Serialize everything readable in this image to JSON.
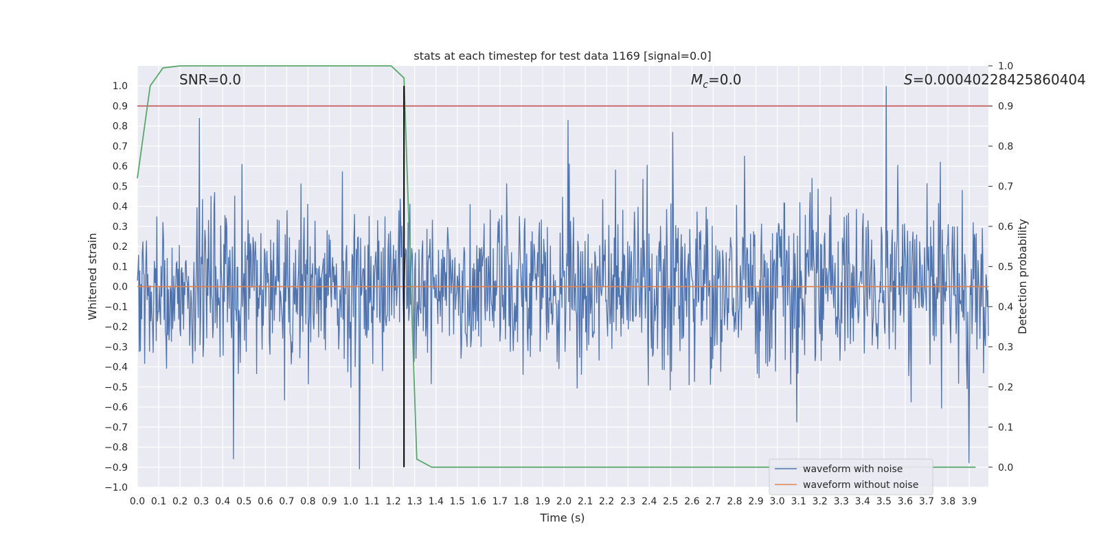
{
  "chart_data": {
    "type": "line",
    "title": "stats at each timestep for test data 1169 [signal=0.0]",
    "xlabel": "Time (s)",
    "ylabel": "Whitened strain",
    "y2label": "Detection probability",
    "xlim": [
      0.0,
      3.99
    ],
    "ylim": [
      -1.0,
      1.1
    ],
    "y2lim": [
      -0.05,
      1.0
    ],
    "xticks": [
      0.0,
      0.1,
      0.2,
      0.3,
      0.4,
      0.5,
      0.6,
      0.7,
      0.8,
      0.9,
      1.0,
      1.1,
      1.2,
      1.3,
      1.4,
      1.5,
      1.6,
      1.7,
      1.8,
      1.9,
      2.0,
      2.1,
      2.2,
      2.3,
      2.4,
      2.5,
      2.6,
      2.7,
      2.8,
      2.9,
      3.0,
      3.1,
      3.2,
      3.3,
      3.4,
      3.5,
      3.6,
      3.7,
      3.8,
      3.9
    ],
    "yticks": [
      1.0,
      0.9,
      0.8,
      0.7,
      0.6,
      0.5,
      0.4,
      0.3,
      0.2,
      0.1,
      0.0,
      -0.1,
      -0.2,
      -0.3,
      -0.4,
      -0.5,
      -0.6,
      -0.7,
      -0.8,
      -0.9,
      -1.0
    ],
    "y2ticks": [
      1.0,
      0.9,
      0.8,
      0.7,
      0.6,
      0.5,
      0.4,
      0.3,
      0.2,
      0.1,
      0.0
    ],
    "grid": true,
    "legend_position": "lower-right",
    "annotations": {
      "snr": "SNR=0.0",
      "mc_symbol": "M",
      "mc_sub": "c",
      "mc_value": "=0.0",
      "s_symbol": "S",
      "s_value": "=0.00040228425860404"
    },
    "series": [
      {
        "name": "waveform with noise",
        "axis": "left",
        "color": "#4c72b0",
        "description": "dense whitened noise, mostly within about -0.45..0.45 with spikes",
        "envelope_typical": 0.45,
        "spikes": [
          {
            "x": 0.29,
            "y": 0.84
          },
          {
            "x": 0.45,
            "y": -0.86
          },
          {
            "x": 1.04,
            "y": -0.91
          },
          {
            "x": 2.02,
            "y": 0.83
          },
          {
            "x": 3.51,
            "y": 1.0
          },
          {
            "x": 3.9,
            "y": -0.88
          }
        ]
      },
      {
        "name": "waveform without noise",
        "axis": "left",
        "color": "#dd8452",
        "x": [
          0.0,
          3.99
        ],
        "y": [
          0.0,
          0.0
        ]
      },
      {
        "name": "detection probability",
        "axis": "right",
        "color": "#55a868",
        "x": [
          0.0,
          0.06,
          0.12,
          0.2,
          0.3,
          0.5,
          1.0,
          1.19,
          1.25,
          1.31,
          1.38,
          1.5,
          2.0,
          3.0,
          3.93
        ],
        "y": [
          0.72,
          0.95,
          0.995,
          1.0,
          1.0,
          1.0,
          1.0,
          1.0,
          0.97,
          0.02,
          0.0,
          0.0,
          0.0,
          0.0,
          0.0
        ]
      },
      {
        "name": "threshold",
        "axis": "right",
        "color": "#c44e52",
        "x": [
          0.0,
          3.99
        ],
        "y": [
          0.9,
          0.9
        ]
      }
    ],
    "vline": {
      "x": 1.25,
      "ymin": -0.9,
      "ymax": 1.0,
      "color": "#000000"
    },
    "legend": [
      "waveform with noise",
      "waveform without noise"
    ]
  }
}
